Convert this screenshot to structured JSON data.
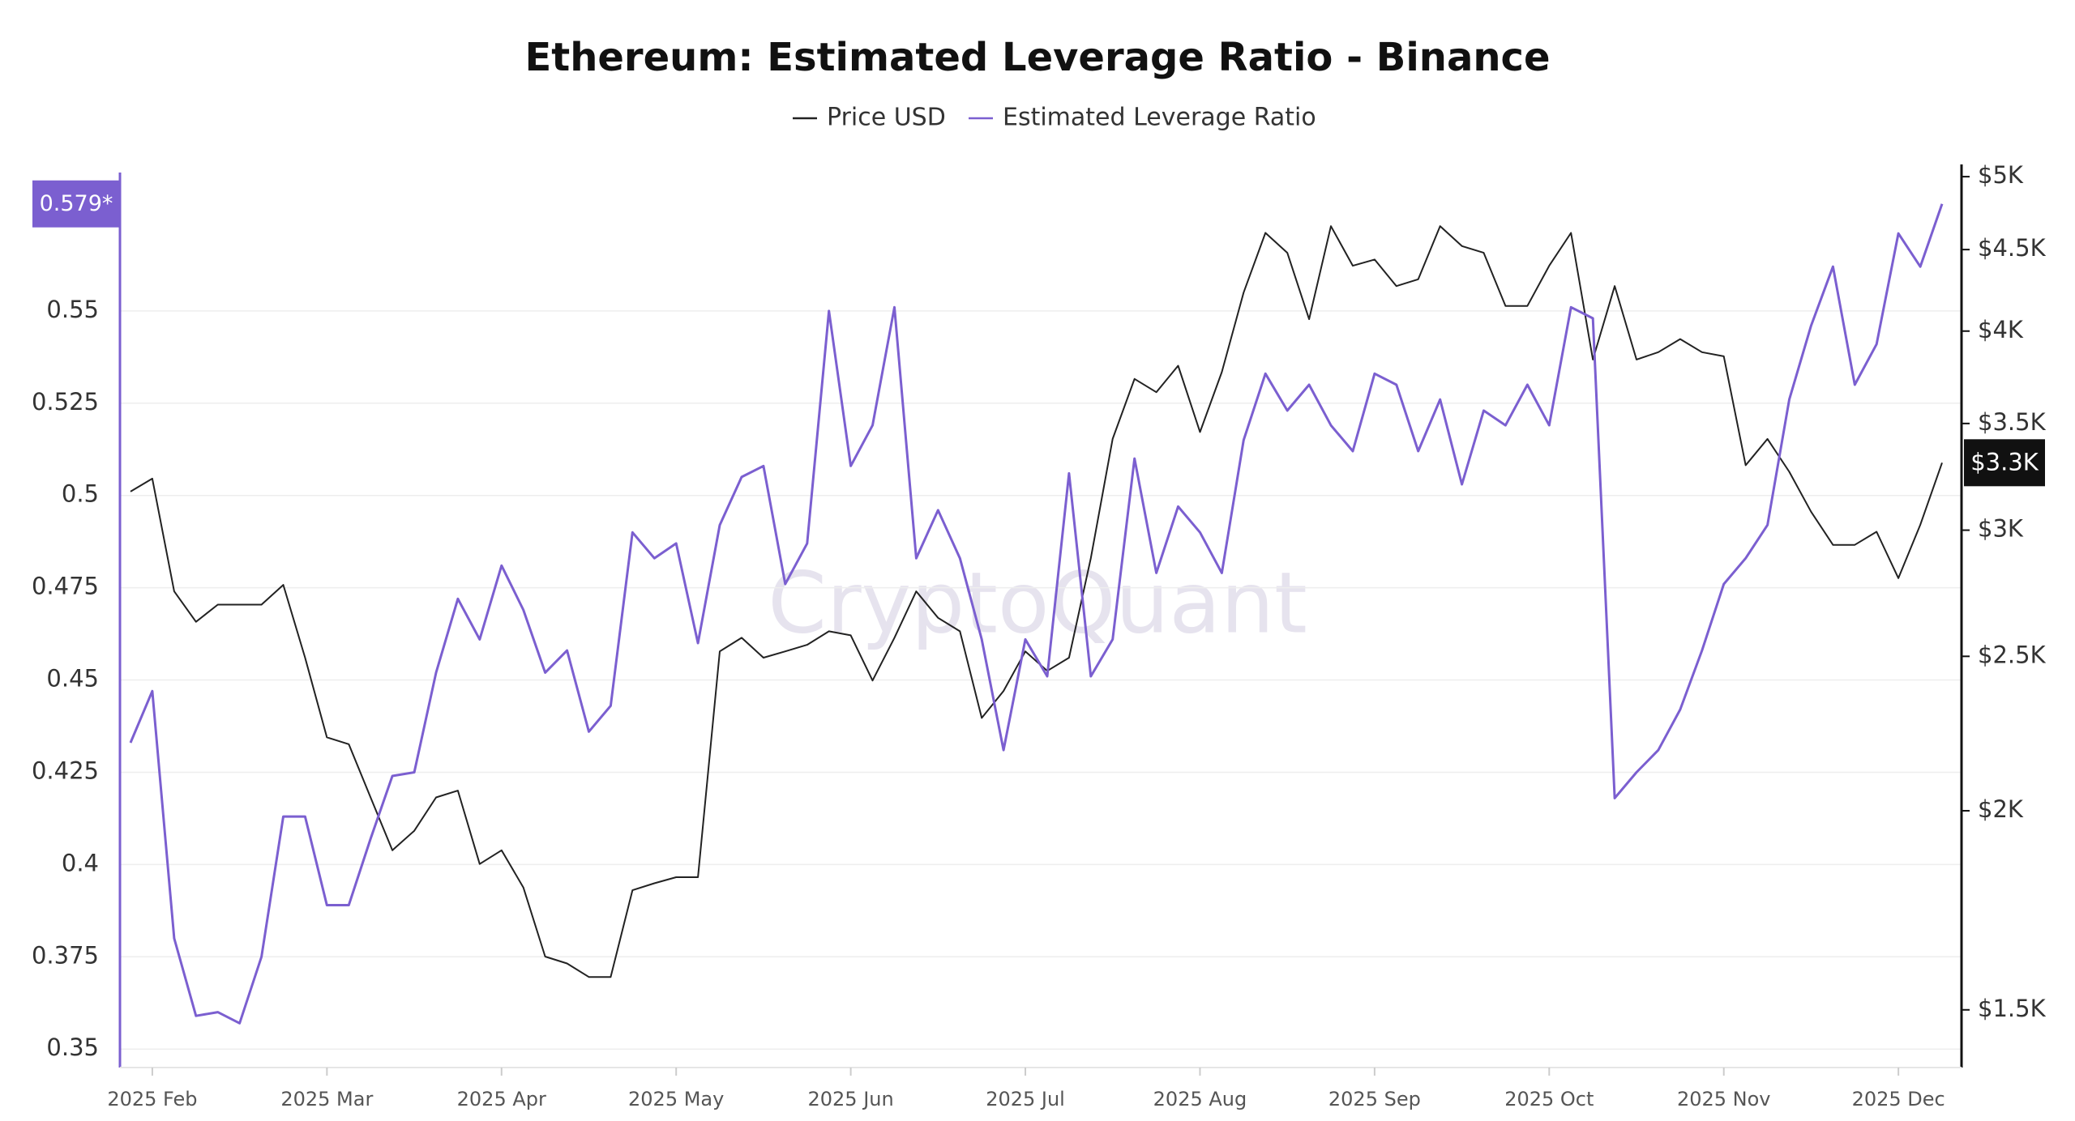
{
  "chart_data": {
    "type": "line",
    "title": "Ethereum: Estimated Leverage Ratio - Binance",
    "watermark": "CryptoQuant",
    "categories": [
      null,
      "2025 Feb",
      null,
      null,
      null,
      null,
      null,
      null,
      null,
      "2025 Mar",
      null,
      null,
      null,
      null,
      null,
      null,
      null,
      "2025 Apr",
      null,
      null,
      null,
      null,
      null,
      null,
      null,
      "2025 May",
      null,
      null,
      null,
      null,
      null,
      null,
      null,
      "2025 Jun",
      null,
      null,
      null,
      null,
      null,
      null,
      null,
      "2025 Jul",
      null,
      null,
      null,
      null,
      null,
      null,
      null,
      "2025 Aug",
      null,
      null,
      null,
      null,
      null,
      null,
      null,
      "2025 Sep",
      null,
      null,
      null,
      null,
      null,
      null,
      null,
      "2025 Oct",
      null,
      null,
      null,
      null,
      null,
      null,
      null,
      "2025 Nov",
      null,
      null,
      null,
      null,
      null,
      null,
      null,
      "2025 Dec",
      null,
      null
    ],
    "series": [
      {
        "name": "Price USD",
        "color": "#222222",
        "axis": "y2",
        "last_value_label": "$3.3K",
        "values": [
          3172,
          3232,
          2746,
          2628,
          2694,
          2694,
          2694,
          2772,
          2495,
          2224,
          2202,
          2039,
          1889,
          1943,
          2039,
          2059,
          1852,
          1889,
          1790,
          1620,
          1604,
          1573,
          1573,
          1783,
          1801,
          1817,
          1817,
          2518,
          2568,
          2495,
          2518,
          2542,
          2592,
          2577,
          2414,
          2568,
          2746,
          2643,
          2592,
          2287,
          2378,
          2518,
          2448,
          2495,
          2881,
          3423,
          3733,
          3662,
          3805,
          3457,
          3770,
          4229,
          4610,
          4479,
          4069,
          4655,
          4396,
          4436,
          4269,
          4311,
          4655,
          4523,
          4479,
          4148,
          4148,
          4396,
          4610,
          3839,
          4269,
          3839,
          3880,
          3954,
          3880,
          3857,
          3295,
          3423,
          3264,
          3081,
          2937,
          2937,
          2993,
          2799,
          3023,
          3307
        ]
      },
      {
        "name": "Estimated Leverage Ratio",
        "color": "#7b5fd0",
        "axis": "y",
        "last_value_label": "0.579*",
        "values": [
          0.433,
          0.447,
          0.38,
          0.359,
          0.36,
          0.357,
          0.375,
          0.413,
          0.413,
          0.389,
          0.389,
          0.407,
          0.424,
          0.425,
          0.452,
          0.472,
          0.461,
          0.481,
          0.469,
          0.452,
          0.458,
          0.436,
          0.443,
          0.49,
          0.483,
          0.487,
          0.46,
          0.492,
          0.505,
          0.508,
          0.476,
          0.487,
          0.55,
          0.508,
          0.519,
          0.551,
          0.483,
          0.496,
          0.483,
          0.461,
          0.431,
          0.461,
          0.451,
          0.506,
          0.451,
          0.461,
          0.51,
          0.479,
          0.497,
          0.49,
          0.479,
          0.515,
          0.533,
          0.523,
          0.53,
          0.519,
          0.512,
          0.533,
          0.53,
          0.512,
          0.526,
          0.503,
          0.523,
          0.519,
          0.53,
          0.519,
          0.551,
          0.548,
          0.418,
          0.425,
          0.431,
          0.442,
          0.458,
          0.476,
          0.483,
          0.492,
          0.526,
          0.546,
          0.562,
          0.53,
          0.541,
          0.571,
          0.562,
          0.579
        ]
      }
    ],
    "ylim": [
      0.345,
      0.5875
    ],
    "yticks": [
      0.35,
      0.375,
      0.4,
      0.425,
      0.45,
      0.475,
      0.5,
      0.525,
      0.55
    ],
    "y2lim": [
      1380,
      5030
    ],
    "y2_log": true,
    "y2ticks": [
      {
        "value": 1500,
        "label": "$1.5K"
      },
      {
        "value": 2000,
        "label": "$2K"
      },
      {
        "value": 2500,
        "label": "$2.5K"
      },
      {
        "value": 3000,
        "label": "$3K"
      },
      {
        "value": 3500,
        "label": "$3.5K"
      },
      {
        "value": 4000,
        "label": "$4K"
      },
      {
        "value": 4500,
        "label": "$4.5K"
      },
      {
        "value": 5000,
        "label": "$5K"
      }
    ],
    "grid": true
  }
}
